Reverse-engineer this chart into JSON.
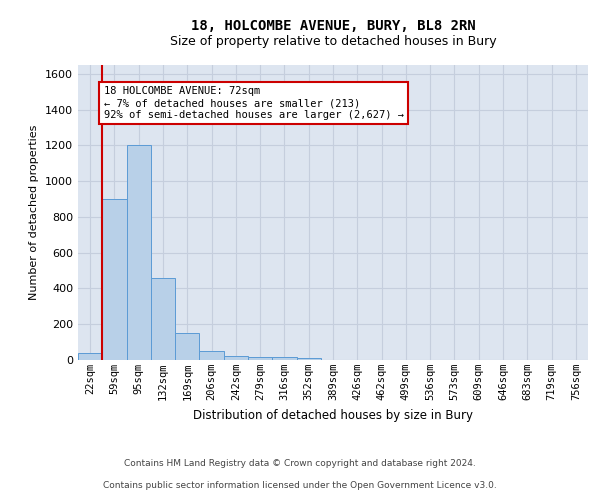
{
  "title_line1": "18, HOLCOMBE AVENUE, BURY, BL8 2RN",
  "title_line2": "Size of property relative to detached houses in Bury",
  "xlabel": "Distribution of detached houses by size in Bury",
  "ylabel": "Number of detached properties",
  "categories": [
    "22sqm",
    "59sqm",
    "95sqm",
    "132sqm",
    "169sqm",
    "206sqm",
    "242sqm",
    "279sqm",
    "316sqm",
    "352sqm",
    "389sqm",
    "426sqm",
    "462sqm",
    "499sqm",
    "536sqm",
    "573sqm",
    "609sqm",
    "646sqm",
    "683sqm",
    "719sqm",
    "756sqm"
  ],
  "values": [
    40,
    900,
    1200,
    460,
    150,
    50,
    25,
    15,
    15,
    10,
    0,
    0,
    0,
    0,
    0,
    0,
    0,
    0,
    0,
    0,
    0
  ],
  "bar_color": "#b8d0e8",
  "bar_edge_color": "#5b9bd5",
  "grid_color": "#c5cedd",
  "background_color": "#dde5f0",
  "vline_color": "#cc0000",
  "vline_x": 0.5,
  "annotation_line1": "18 HOLCOMBE AVENUE: 72sqm",
  "annotation_line2": "← 7% of detached houses are smaller (213)",
  "annotation_line3": "92% of semi-detached houses are larger (2,627) →",
  "annotation_box_facecolor": "#ffffff",
  "annotation_box_edgecolor": "#cc0000",
  "ylim": [
    0,
    1650
  ],
  "yticks": [
    0,
    200,
    400,
    600,
    800,
    1000,
    1200,
    1400,
    1600
  ],
  "footer_line1": "Contains HM Land Registry data © Crown copyright and database right 2024.",
  "footer_line2": "Contains public sector information licensed under the Open Government Licence v3.0.",
  "title1_fontsize": 10,
  "title2_fontsize": 9,
  "xlabel_fontsize": 8.5,
  "ylabel_fontsize": 8,
  "footer_fontsize": 6.5,
  "tick_fontsize": 7.5,
  "annot_fontsize": 7.5
}
